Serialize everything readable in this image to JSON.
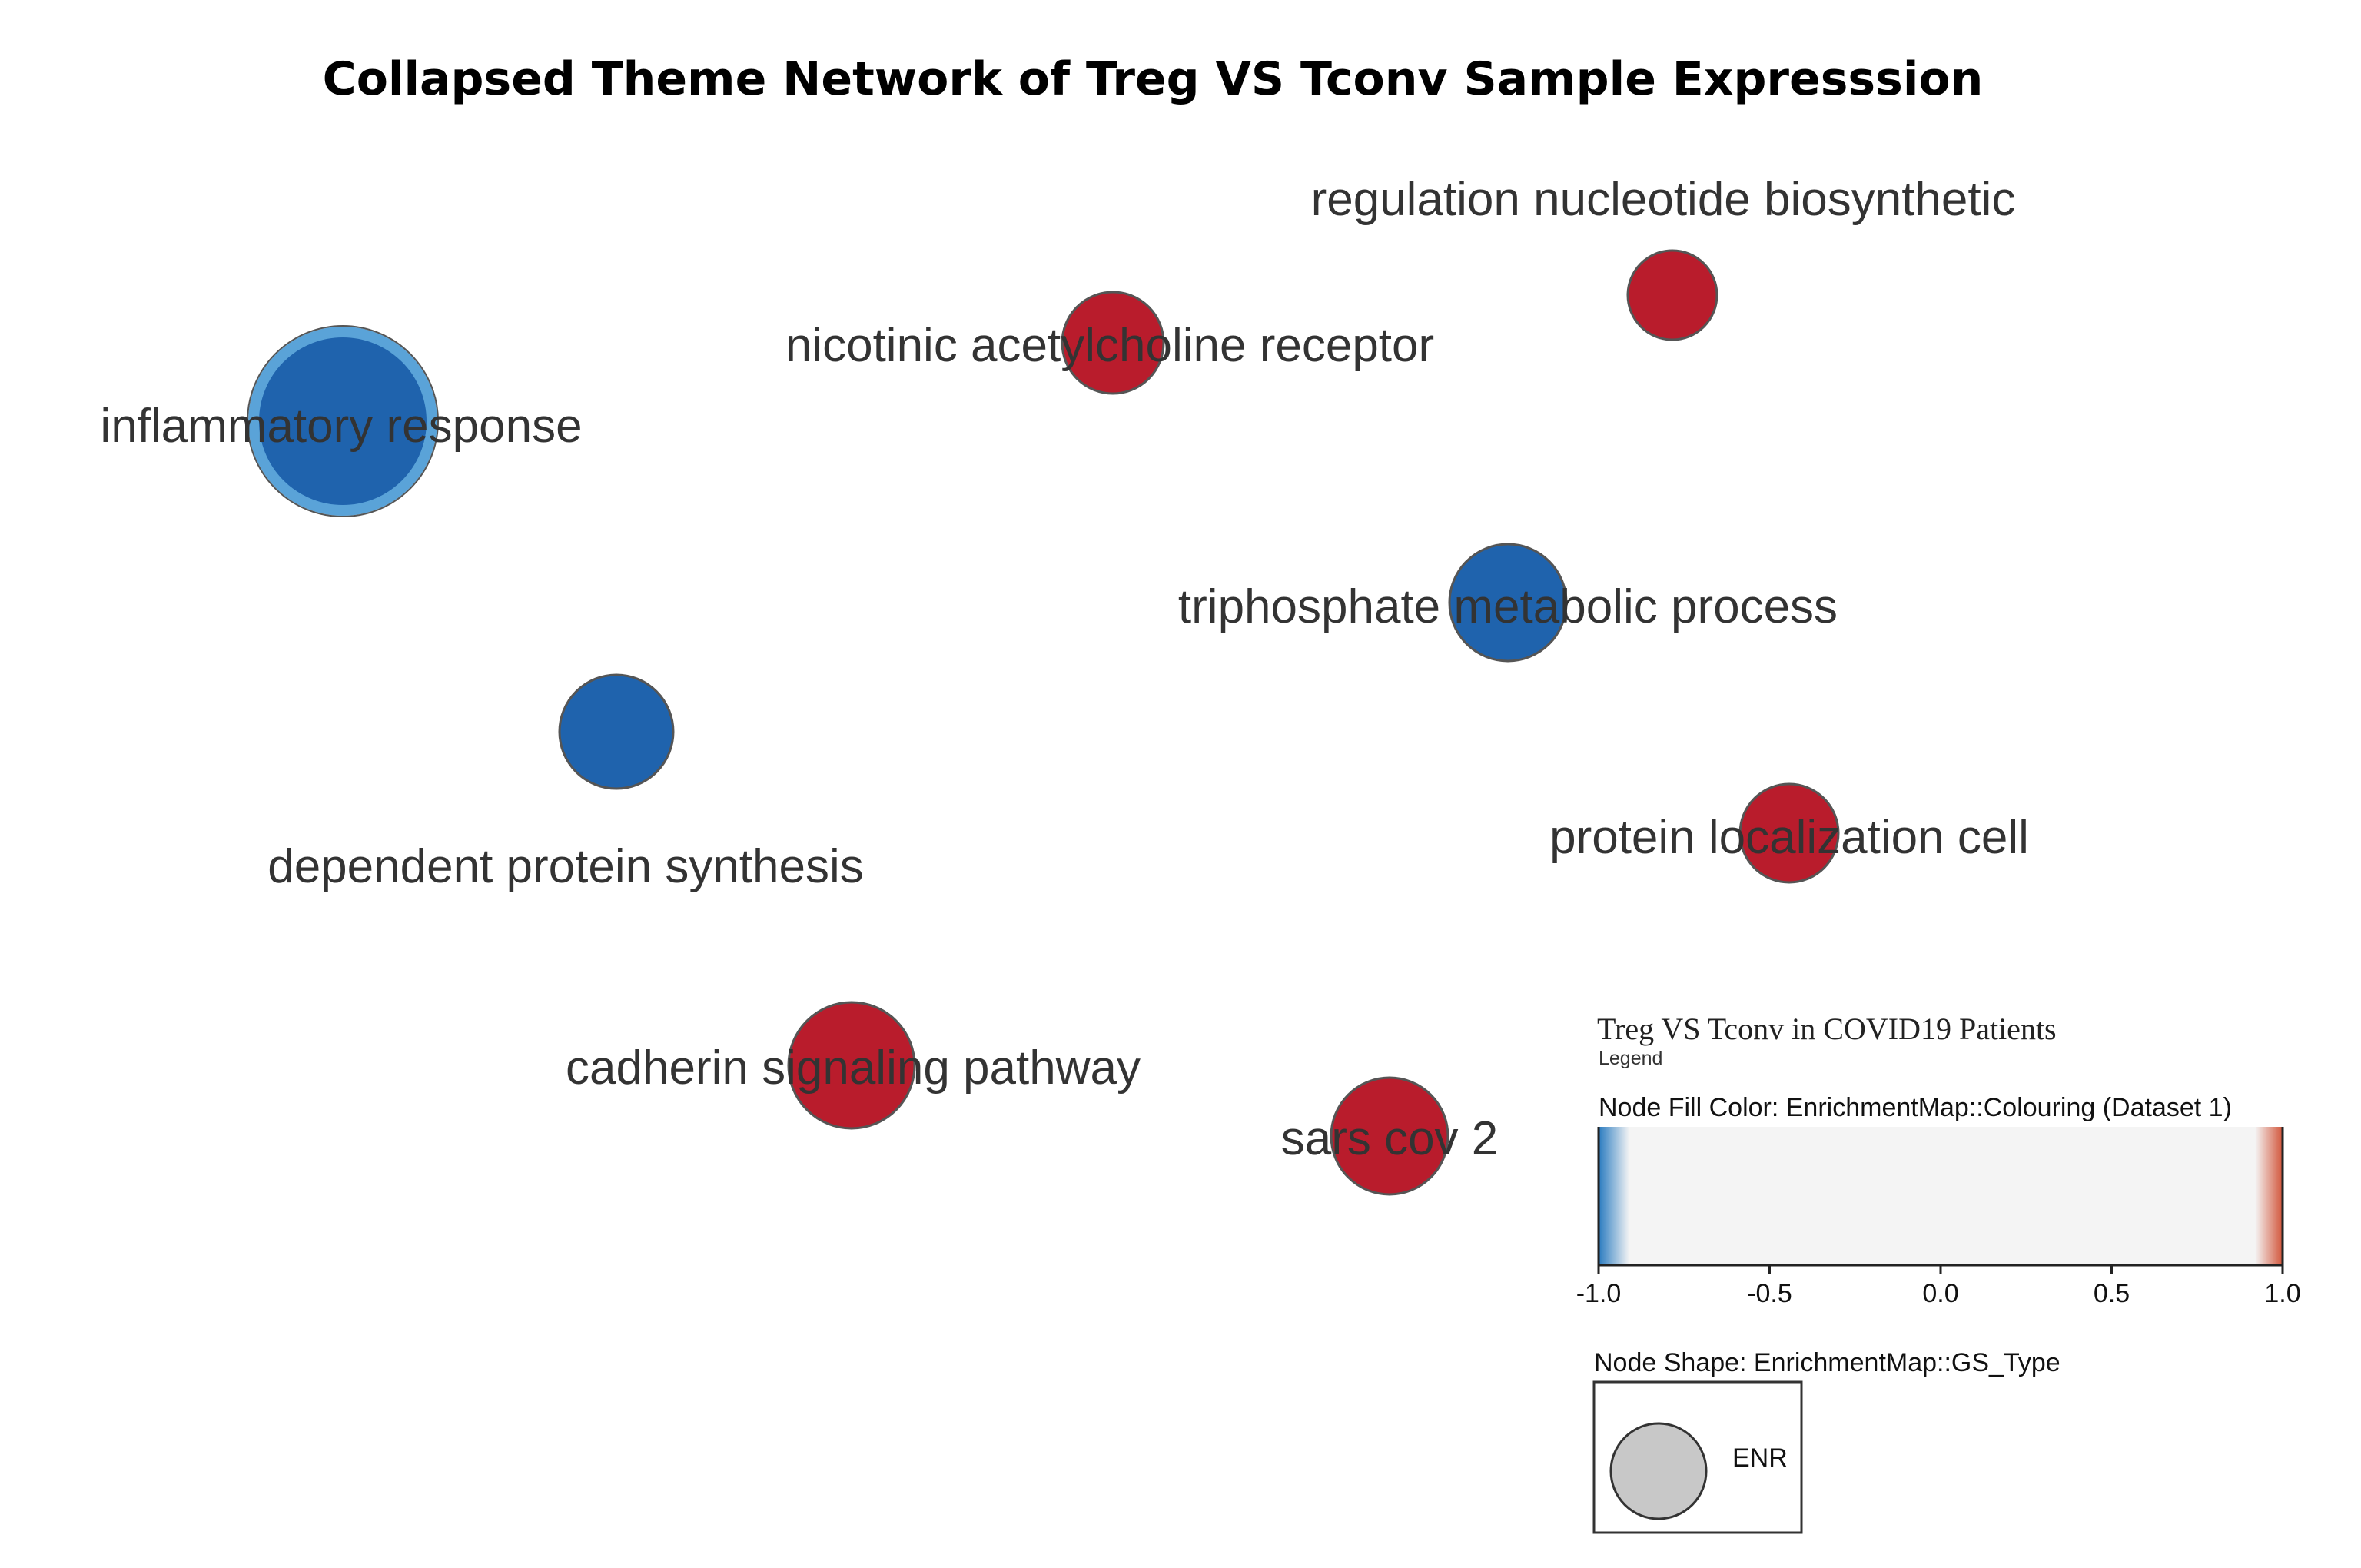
{
  "title": "Collapsed Theme Network of Treg VS Tconv Sample Expresssion",
  "nodes": [
    {
      "id": "inflammatory",
      "label": "inflammatory response",
      "color": "#1f63ad",
      "ring": "#5aa3d8",
      "value": -1.0
    },
    {
      "id": "nicotinic",
      "label": "nicotinic acetylcholine receptor",
      "color": "#b91c2c",
      "ring": "#b91c2c",
      "value": 1.0
    },
    {
      "id": "regulation",
      "label": "regulation nucleotide biosynthetic",
      "color": "#b91c2c",
      "ring": "#b91c2c",
      "value": 1.0
    },
    {
      "id": "triphosphate",
      "label": "triphosphate metabolic process",
      "color": "#1f63ad",
      "ring": "#1f63ad",
      "value": -1.0
    },
    {
      "id": "dependent",
      "label": "dependent protein synthesis",
      "color": "#1f63ad",
      "ring": "#1f63ad",
      "value": -1.0
    },
    {
      "id": "protein",
      "label": "protein localization cell",
      "color": "#b91c2c",
      "ring": "#b91c2c",
      "value": 1.0
    },
    {
      "id": "cadherin",
      "label": "cadherin signaling pathway",
      "color": "#b91c2c",
      "ring": "#b91c2c",
      "value": 1.0
    },
    {
      "id": "sars",
      "label": "sars cov 2",
      "color": "#b91c2c",
      "ring": "#b91c2c",
      "value": 1.0
    }
  ],
  "legend": {
    "title": "Treg VS Tconv in COVID19 Patients",
    "subtitle": "Legend",
    "fill_label": "Node Fill Color:  EnrichmentMap::Colouring (Dataset 1)",
    "ticks": [
      "-1.0",
      "-0.5",
      "0.0",
      "0.5",
      "1.0"
    ],
    "shape_label": "Node Shape:  EnrichmentMap::GS_Type",
    "shape_item": "ENR",
    "colors": {
      "low": "#2b7bbf",
      "mid": "#f4f4f4",
      "high": "#d2553a"
    }
  }
}
